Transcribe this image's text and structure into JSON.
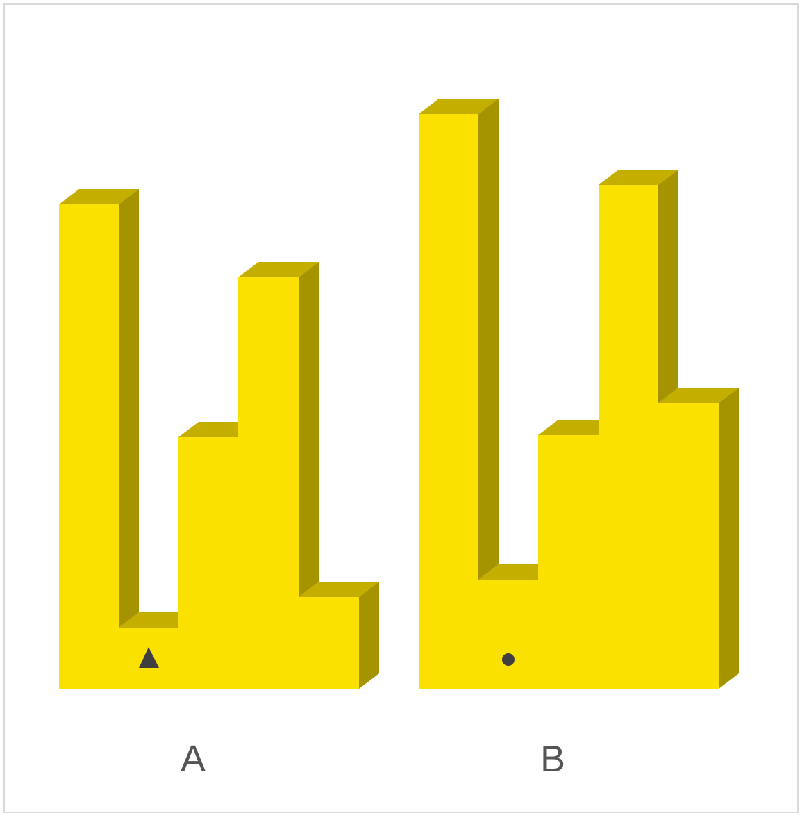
{
  "figures": [
    {
      "label": "A",
      "column_heights": [
        7,
        1,
        4,
        6,
        1.5
      ],
      "marker": "triangle"
    },
    {
      "label": "B",
      "column_heights": [
        8.5,
        1.8,
        3.9,
        7.6,
        4.4
      ],
      "marker": "circle"
    }
  ],
  "colors": {
    "front": "#FAE100",
    "top": "#C4AE00",
    "side": "#A59300",
    "marker": "#3f3f3f",
    "label": "#555555",
    "frame": "#d9d9d9"
  }
}
